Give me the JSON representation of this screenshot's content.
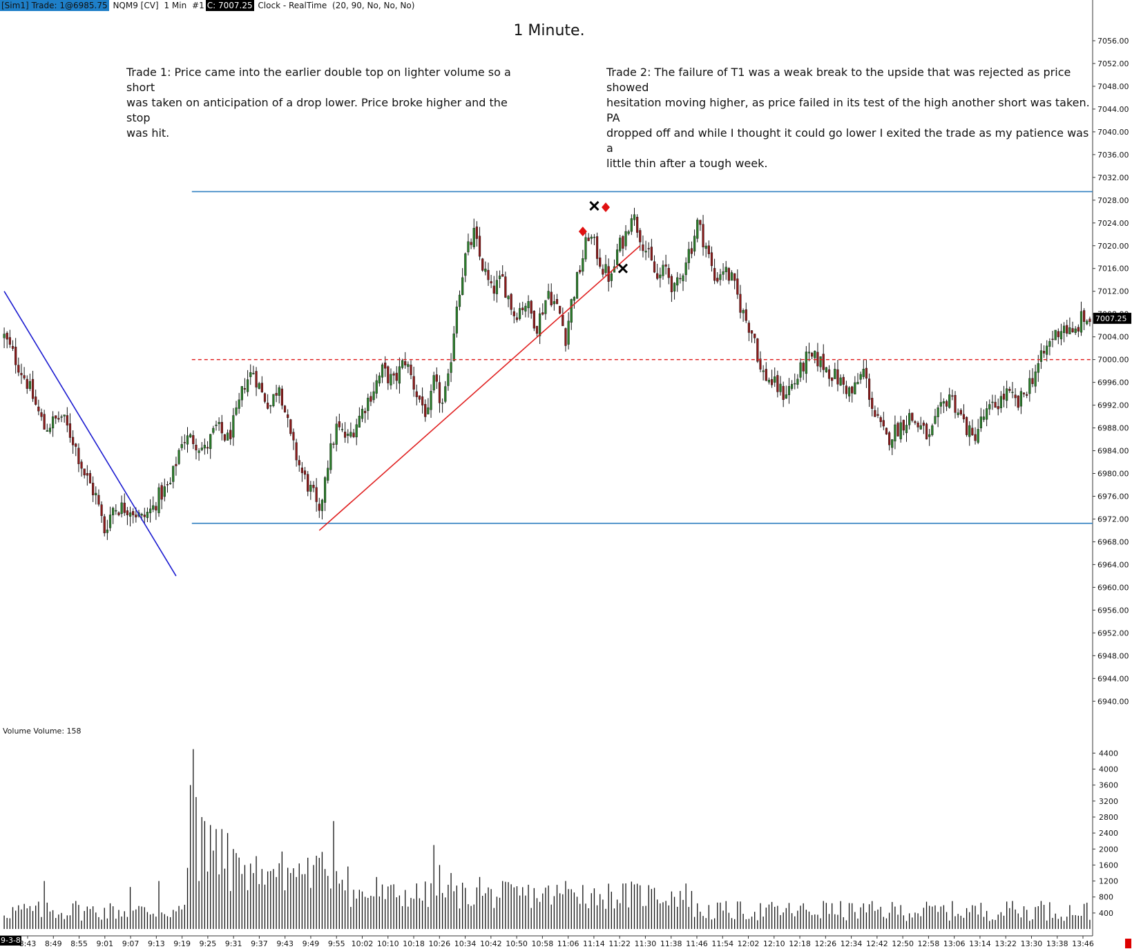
{
  "header": {
    "account": "[Sim1]",
    "trade": "Trade: 1@6985.75",
    "instrument": "NQM9 [CV]",
    "interval": "1 Min",
    "bars": "#1",
    "close": "C: 7007.25",
    "clock": "Clock - RealTime",
    "params": "(20, 90, No, No, No)"
  },
  "title": "1 Minute.",
  "notes": {
    "trade1": "Trade 1:  Price came into the earlier double top on lighter volume so a short\nwas taken on anticipation of a drop lower.  Price broke higher and the stop\nwas hit.",
    "trade2": "Trade 2:  The failure of T1 was a weak break to the upside that was rejected as price showed\nhesitation moving higher, as price failed in its test of the high another short was taken.  PA\ndropped off and while I thought it could go lower I exited the trade as my patience was a\nlittle thin after a tough week."
  },
  "volume_panel": {
    "title": "Volume  Volume: 158"
  },
  "date_label": "9-3-8",
  "colors": {
    "up": "#2a7d2a",
    "down": "#8b1a1a",
    "range_line": "#2f7fc0",
    "mid_line": "#e02020",
    "trend_down": "#1a1ad0",
    "trend_up": "#e02020",
    "entry_marker": "#e01010",
    "exit_marker": "#000000",
    "last_price_bg": "#000000"
  },
  "chart_data": [
    {
      "type": "candlestick",
      "y_axis_ticks": [
        "7056.00",
        "7052.00",
        "7048.00",
        "7044.00",
        "7040.00",
        "7036.00",
        "7032.00",
        "7028.00",
        "7024.00",
        "7020.00",
        "7016.00",
        "7012.00",
        "7008.00",
        "7004.00",
        "7000.00",
        "6996.00",
        "6992.00",
        "6988.00",
        "6984.00",
        "6980.00",
        "6976.00",
        "6972.00",
        "6968.00",
        "6964.00",
        "6960.00",
        "6956.00",
        "6952.00",
        "6948.00",
        "6944.00",
        "6940.00"
      ],
      "ylim": [
        6937,
        7060
      ],
      "last_price": "7007.25",
      "x_labels": [
        "8:43",
        "8:49",
        "8:55",
        "9:01",
        "9:07",
        "9:13",
        "9:19",
        "9:25",
        "9:31",
        "9:37",
        "9:43",
        "9:49",
        "9:55",
        "10:02",
        "10:10",
        "10:18",
        "10:26",
        "10:34",
        "10:42",
        "10:50",
        "10:58",
        "11:06",
        "11:14",
        "11:22",
        "11:30",
        "11:38",
        "11:46",
        "11:54",
        "12:02",
        "12:10",
        "12:18",
        "12:26",
        "12:34",
        "12:42",
        "12:50",
        "12:58",
        "13:06",
        "13:14",
        "13:22",
        "13:30",
        "13:38",
        "13:46"
      ],
      "close_path": [
        [
          0,
          7004
        ],
        [
          8,
          6996
        ],
        [
          14,
          6988
        ],
        [
          20,
          6990
        ],
        [
          24,
          6986
        ],
        [
          28,
          6980
        ],
        [
          32,
          6976
        ],
        [
          35,
          6970
        ],
        [
          38,
          6974
        ],
        [
          44,
          6974
        ],
        [
          48,
          6972
        ],
        [
          52,
          6974
        ],
        [
          54,
          6976
        ],
        [
          58,
          6978
        ],
        [
          62,
          6986
        ],
        [
          66,
          6986
        ],
        [
          70,
          6984
        ],
        [
          74,
          6988
        ],
        [
          78,
          6986
        ],
        [
          81,
          6990
        ],
        [
          84,
          6996
        ],
        [
          87,
          6998
        ],
        [
          90,
          6994
        ],
        [
          93,
          6992
        ],
        [
          96,
          6996
        ],
        [
          100,
          6986
        ],
        [
          104,
          6980
        ],
        [
          108,
          6976
        ],
        [
          110,
          6972
        ],
        [
          112,
          6980
        ],
        [
          116,
          6988
        ],
        [
          120,
          6986
        ],
        [
          124,
          6990
        ],
        [
          128,
          6994
        ],
        [
          132,
          6998
        ],
        [
          136,
          6996
        ],
        [
          140,
          7000
        ],
        [
          144,
          6994
        ],
        [
          148,
          6990
        ],
        [
          150,
          6996
        ],
        [
          153,
          6992
        ],
        [
          155,
          6996
        ],
        [
          158,
          7010
        ],
        [
          161,
          7018
        ],
        [
          164,
          7022
        ],
        [
          166,
          7018
        ],
        [
          170,
          7012
        ],
        [
          174,
          7014
        ],
        [
          178,
          7008
        ],
        [
          182,
          7010
        ],
        [
          186,
          7006
        ],
        [
          190,
          7012
        ],
        [
          194,
          7008
        ],
        [
          196,
          7004
        ],
        [
          198,
          7010
        ],
        [
          201,
          7016
        ],
        [
          204,
          7022
        ],
        [
          206,
          7020
        ],
        [
          209,
          7016
        ],
        [
          212,
          7014
        ],
        [
          214,
          7019
        ],
        [
          217,
          7022
        ],
        [
          219,
          7026
        ],
        [
          222,
          7022
        ],
        [
          225,
          7018
        ],
        [
          228,
          7014
        ],
        [
          231,
          7016
        ],
        [
          234,
          7012
        ],
        [
          236,
          7014
        ],
        [
          238,
          7018
        ],
        [
          240,
          7020
        ],
        [
          242,
          7024
        ],
        [
          245,
          7020
        ],
        [
          248,
          7014
        ],
        [
          251,
          7016
        ],
        [
          254,
          7014
        ],
        [
          258,
          7008
        ],
        [
          262,
          7004
        ],
        [
          264,
          6998
        ],
        [
          268,
          6996
        ],
        [
          272,
          6994
        ],
        [
          276,
          6996
        ],
        [
          280,
          7000
        ],
        [
          284,
          7000
        ],
        [
          288,
          6998
        ],
        [
          292,
          6996
        ],
        [
          296,
          6994
        ],
        [
          300,
          6998
        ],
        [
          304,
          6990
        ],
        [
          308,
          6986
        ],
        [
          312,
          6988
        ],
        [
          316,
          6990
        ],
        [
          320,
          6988
        ],
        [
          323,
          6986
        ],
        [
          326,
          6990
        ],
        [
          330,
          6994
        ],
        [
          334,
          6990
        ],
        [
          338,
          6986
        ],
        [
          342,
          6990
        ],
        [
          346,
          6992
        ],
        [
          350,
          6994
        ],
        [
          354,
          6992
        ],
        [
          358,
          6996
        ],
        [
          362,
          7000
        ],
        [
          366,
          7004
        ],
        [
          370,
          7006
        ],
        [
          373,
          7004
        ],
        [
          376,
          7007
        ]
      ],
      "levels": {
        "range_high": 7029.5,
        "range_low": 6971.25,
        "mid": 7000.0
      },
      "trend_lines": [
        {
          "name": "downtrend",
          "from": [
            0,
            7012
          ],
          "to": [
            60,
            6962
          ]
        },
        {
          "name": "uptrend",
          "from": [
            110,
            6970
          ],
          "to": [
            222,
            7020
          ]
        }
      ],
      "trades": [
        {
          "label": "T1",
          "entry_x": 202,
          "entry_price": 7022.5,
          "exit_x": 206,
          "exit_price": 7027.0
        },
        {
          "label": "T2",
          "entry_x": 210,
          "entry_price": 7026.75,
          "exit_x": 216,
          "exit_price": 7016.0
        }
      ]
    },
    {
      "type": "bar",
      "name": "Volume",
      "last_value": 158,
      "y_axis_ticks": [
        "4400",
        "4000",
        "3600",
        "3200",
        "2800",
        "2400",
        "2000",
        "1600",
        "1200",
        "800",
        "400"
      ],
      "ylim": [
        0,
        4700
      ],
      "spikes": [
        [
          14,
          1200
        ],
        [
          25,
          700
        ],
        [
          44,
          1050
        ],
        [
          54,
          1200
        ],
        [
          65,
          3600
        ],
        [
          66,
          4500
        ],
        [
          67,
          3300
        ],
        [
          69,
          2800
        ],
        [
          70,
          2700
        ],
        [
          72,
          2600
        ],
        [
          74,
          2500
        ],
        [
          76,
          2500
        ],
        [
          78,
          2400
        ],
        [
          80,
          2000
        ],
        [
          84,
          1600
        ],
        [
          90,
          1500
        ],
        [
          94,
          1500
        ],
        [
          100,
          1400
        ],
        [
          108,
          1600
        ],
        [
          112,
          1500
        ],
        [
          115,
          2700
        ],
        [
          130,
          1300
        ],
        [
          150,
          2100
        ],
        [
          152,
          1600
        ],
        [
          156,
          1400
        ],
        [
          166,
          1300
        ],
        [
          196,
          1200
        ],
        [
          202,
          1100
        ],
        [
          226,
          1000
        ],
        [
          286,
          700
        ],
        [
          352,
          700
        ],
        [
          362,
          700
        ]
      ]
    }
  ]
}
